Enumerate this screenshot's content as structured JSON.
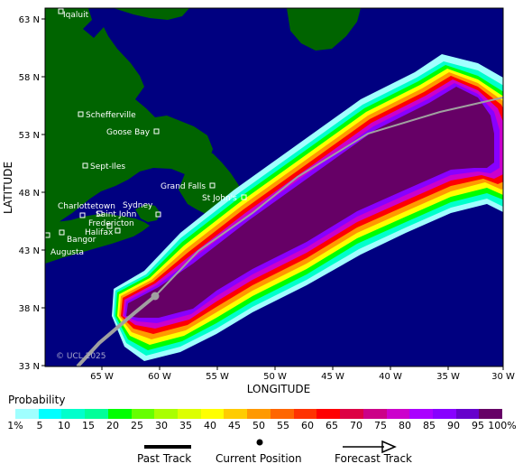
{
  "map": {
    "credit": "© UCL 2025",
    "x_axis": {
      "title": "LONGITUDE",
      "ticks": [
        "65 W",
        "60 W",
        "55 W",
        "50 W",
        "45 W",
        "40 W",
        "35 W",
        "30 W"
      ]
    },
    "y_axis": {
      "title": "LATITUDE",
      "ticks": [
        "63 N",
        "58 N",
        "53 N",
        "48 N",
        "43 N",
        "38 N",
        "33 N"
      ]
    },
    "cities": [
      "Iqaluit",
      "Schefferville",
      "Goose Bay",
      "Sept-Iles",
      "Grand Falls",
      "St John's",
      "Charlottetown",
      "Sydney",
      "Saint John",
      "Fredericton",
      "Halifax",
      "Bangor",
      "Augusta"
    ],
    "colors": {
      "ocean": "#000080",
      "land": "#006400",
      "track": "#a0a0a0"
    }
  },
  "legend": {
    "title": "Probability",
    "labels": [
      "1%",
      "5",
      "10",
      "15",
      "20",
      "25",
      "30",
      "35",
      "40",
      "45",
      "50",
      "55",
      "60",
      "65",
      "70",
      "75",
      "80",
      "85",
      "90",
      "95",
      "100%"
    ],
    "colors": [
      "#a0ffff",
      "#00ffff",
      "#00ffcc",
      "#00ff99",
      "#00ff00",
      "#66ff00",
      "#aaff00",
      "#ddff00",
      "#ffff00",
      "#ffcc00",
      "#ff9900",
      "#ff6600",
      "#ff3300",
      "#ff0000",
      "#dd0044",
      "#cc0088",
      "#cc00cc",
      "#aa00ff",
      "#8800ff",
      "#6600cc",
      "#660066"
    ],
    "past_track": "Past Track",
    "current_position": "Current Position",
    "forecast_track": "Forecast Track"
  }
}
